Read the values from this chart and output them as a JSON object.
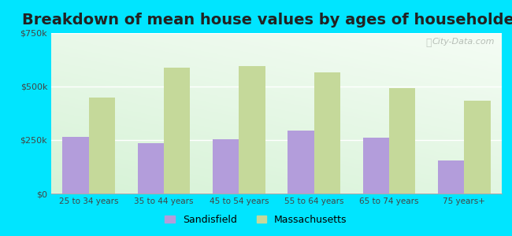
{
  "title": "Breakdown of mean house values by ages of householders",
  "categories": [
    "25 to 34 years",
    "35 to 44 years",
    "45 to 54 years",
    "55 to 64 years",
    "65 to 74 years",
    "75 years+"
  ],
  "sandisfield": [
    265000,
    237000,
    252000,
    295000,
    262000,
    155000
  ],
  "massachusetts": [
    450000,
    590000,
    595000,
    565000,
    492000,
    435000
  ],
  "sandisfield_color": "#b39ddb",
  "massachusetts_color": "#c5d99a",
  "ylim": [
    0,
    750000
  ],
  "yticks": [
    0,
    250000,
    500000,
    750000
  ],
  "legend_sandisfield": "Sandisfield",
  "legend_massachusetts": "Massachusetts",
  "title_fontsize": 14,
  "bar_width": 0.35,
  "outer_bg": "#00e5ff",
  "plot_bg_top": "#f5fdf5",
  "plot_bg_bottom": "#d4f0d4"
}
